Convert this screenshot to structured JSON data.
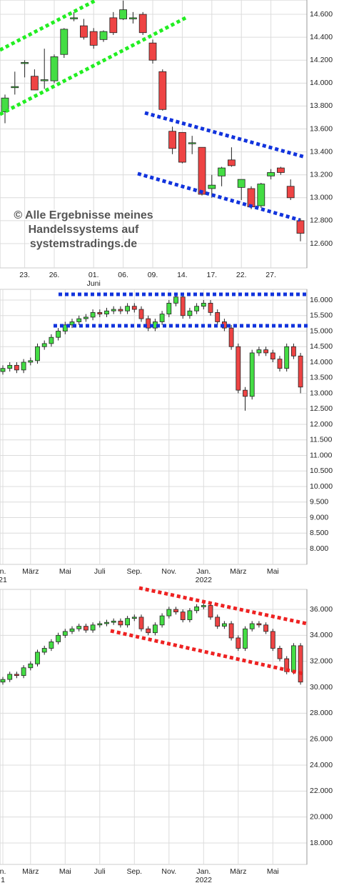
{
  "chart_data": [
    {
      "type": "candlestick",
      "watermark": [
        "© Alle Ergebnisse meines",
        "Handelssystems auf",
        "systemstradings.de"
      ],
      "categories": [
        null,
        null,
        "23.",
        null,
        null,
        "26.",
        null,
        null,
        null,
        "01.",
        null,
        null,
        "06.",
        null,
        null,
        "09.",
        null,
        null,
        "14.",
        null,
        null,
        "17.",
        null,
        null,
        "22.",
        null,
        null,
        "27.",
        null,
        null,
        null
      ],
      "sublabels": [
        null,
        null,
        null,
        null,
        null,
        null,
        null,
        null,
        null,
        "Juni",
        null,
        null,
        null,
        null,
        null,
        null,
        null,
        null,
        null,
        null,
        null,
        null,
        null,
        null,
        null,
        null,
        null,
        null,
        null,
        null,
        null
      ],
      "open": [
        13750,
        13960,
        14180,
        14060,
        14020,
        14020,
        14250,
        14570,
        14500,
        14450,
        14380,
        14570,
        14560,
        14560,
        14600,
        14350,
        14100,
        13580,
        13570,
        13480,
        13440,
        13080,
        13190,
        13330,
        13090,
        13080,
        12930,
        13190,
        13260,
        13100,
        12800
      ],
      "high": [
        13900,
        14100,
        14200,
        14120,
        14300,
        14250,
        14480,
        14620,
        14560,
        14480,
        14460,
        14620,
        14720,
        14620,
        14620,
        14380,
        14120,
        13620,
        13570,
        13540,
        13440,
        13200,
        13270,
        13440,
        13160,
        13100,
        13130,
        13250,
        13270,
        13160,
        12820
      ],
      "low": [
        13650,
        13900,
        14050,
        13950,
        13950,
        14000,
        14220,
        14540,
        14380,
        14300,
        14360,
        14420,
        14550,
        14520,
        14420,
        14170,
        13760,
        13380,
        13300,
        13380,
        13020,
        13000,
        13100,
        13270,
        12980,
        12900,
        12910,
        13160,
        13200,
        12980,
        12620
      ],
      "close": [
        13870,
        13970,
        14180,
        13940,
        14030,
        14230,
        14470,
        14570,
        14400,
        14330,
        14450,
        14440,
        14640,
        14570,
        14440,
        14200,
        13770,
        13430,
        13310,
        13480,
        13030,
        13110,
        13260,
        13280,
        13160,
        12920,
        13120,
        13220,
        13220,
        13000,
        12690
      ],
      "ylim": [
        12388,
        14725
      ],
      "yticks": [
        {
          "value": 12600,
          "label": "12.600"
        },
        {
          "value": 12800,
          "label": "12.800"
        },
        {
          "value": 13000,
          "label": "13.000"
        },
        {
          "value": 13200,
          "label": "13.200"
        },
        {
          "value": 13400,
          "label": "13.400"
        },
        {
          "value": 13600,
          "label": "13.600"
        },
        {
          "value": 13800,
          "label": "13.800"
        },
        {
          "value": 14000,
          "label": "14.000"
        },
        {
          "value": 14200,
          "label": "14.200"
        },
        {
          "value": 14400,
          "label": "14.400"
        },
        {
          "value": 14600,
          "label": "14.600"
        }
      ],
      "grid": true,
      "up_color": "#44dd44",
      "down_color": "#ee4444"
    },
    {
      "type": "candlestick",
      "categories": [
        "n.",
        null,
        null,
        null,
        "März",
        null,
        null,
        null,
        null,
        "Mai",
        null,
        null,
        null,
        null,
        "Juli",
        null,
        null,
        null,
        null,
        "Sep.",
        null,
        null,
        null,
        null,
        "Nov.",
        null,
        null,
        null,
        null,
        "Jan.",
        null,
        null,
        null,
        null,
        "März",
        null,
        null,
        null,
        null,
        "Mai",
        null,
        null,
        null,
        null
      ],
      "sublabels": [
        "21",
        null,
        null,
        null,
        null,
        null,
        null,
        null,
        null,
        null,
        null,
        null,
        null,
        null,
        null,
        null,
        null,
        null,
        null,
        null,
        null,
        null,
        null,
        null,
        null,
        null,
        null,
        null,
        null,
        "2022",
        null,
        null,
        null,
        null,
        null,
        null,
        null,
        null,
        null,
        null,
        null,
        null,
        null,
        null
      ],
      "open": [
        13700,
        13800,
        13900,
        13750,
        14000,
        14050,
        14500,
        14600,
        14800,
        15000,
        15200,
        15300,
        15400,
        15450,
        15600,
        15550,
        15650,
        15700,
        15650,
        15800,
        15700,
        15400,
        15100,
        15300,
        15550,
        15900,
        16100,
        15500,
        15650,
        15800,
        15900,
        15600,
        15300,
        15100,
        14500,
        13100,
        12900,
        14300,
        14400,
        14300,
        14100,
        13800,
        14500,
        14200
      ],
      "high": [
        13900,
        14000,
        14000,
        14100,
        14150,
        14600,
        14700,
        14900,
        15100,
        15300,
        15400,
        15500,
        15550,
        15700,
        15700,
        15750,
        15800,
        15800,
        15900,
        15900,
        15800,
        15500,
        15400,
        15650,
        16000,
        16200,
        16200,
        15750,
        15900,
        16000,
        16000,
        15700,
        15400,
        15200,
        14600,
        13200,
        14400,
        14500,
        14500,
        14400,
        14200,
        14600,
        14600,
        14300
      ],
      "low": [
        13600,
        13700,
        13650,
        13650,
        13900,
        13950,
        14400,
        14500,
        14700,
        14900,
        15100,
        15200,
        15300,
        15350,
        15450,
        15450,
        15550,
        15550,
        15550,
        15600,
        15300,
        15000,
        15000,
        15200,
        15450,
        15800,
        15400,
        15400,
        15550,
        15700,
        15500,
        15200,
        15000,
        14400,
        13000,
        12440,
        12800,
        14200,
        14200,
        14000,
        13700,
        13700,
        14100,
        13000
      ],
      "close": [
        13800,
        13900,
        13750,
        14000,
        14050,
        14500,
        14600,
        14800,
        15000,
        15200,
        15300,
        15400,
        15450,
        15600,
        15550,
        15650,
        15700,
        15650,
        15800,
        15700,
        15400,
        15100,
        15300,
        15550,
        15900,
        16100,
        15500,
        15650,
        15800,
        15900,
        15600,
        15300,
        15100,
        14500,
        13100,
        12900,
        14300,
        14400,
        14300,
        14100,
        13800,
        14500,
        14200,
        13200
      ],
      "ylim": [
        7494,
        16345
      ],
      "yticks": [
        {
          "value": 8000,
          "label": "8.000"
        },
        {
          "value": 8500,
          "label": "8.500"
        },
        {
          "value": 9000,
          "label": "9.000"
        },
        {
          "value": 9500,
          "label": "9.500"
        },
        {
          "value": 10000,
          "label": "10.000"
        },
        {
          "value": 10500,
          "label": "10.500"
        },
        {
          "value": 11000,
          "label": "11.000"
        },
        {
          "value": 11500,
          "label": "11.500"
        },
        {
          "value": 12000,
          "label": "12.000"
        },
        {
          "value": 12500,
          "label": "12.500"
        },
        {
          "value": 13000,
          "label": "13.000"
        },
        {
          "value": 13500,
          "label": "13.500"
        },
        {
          "value": 14000,
          "label": "14.000"
        },
        {
          "value": 14500,
          "label": "14.500"
        },
        {
          "value": 15000,
          "label": "15.000"
        },
        {
          "value": 15500,
          "label": "15.500"
        },
        {
          "value": 16000,
          "label": "16.000"
        }
      ],
      "grid": true,
      "up_color": "#44dd44",
      "down_color": "#ee4444"
    },
    {
      "type": "candlestick",
      "categories": [
        "n.",
        null,
        null,
        null,
        "März",
        null,
        null,
        null,
        null,
        "Mai",
        null,
        null,
        null,
        null,
        "Juli",
        null,
        null,
        null,
        null,
        "Sep.",
        null,
        null,
        null,
        null,
        "Nov.",
        null,
        null,
        null,
        null,
        "Jan.",
        null,
        null,
        null,
        null,
        "März",
        null,
        null,
        null,
        null,
        "Mai",
        null,
        null,
        null,
        null
      ],
      "sublabels": [
        "1",
        null,
        null,
        null,
        null,
        null,
        null,
        null,
        null,
        null,
        null,
        null,
        null,
        null,
        null,
        null,
        null,
        null,
        null,
        null,
        null,
        null,
        null,
        null,
        null,
        null,
        null,
        null,
        null,
        "2022",
        null,
        null,
        null,
        null,
        null,
        null,
        null,
        null,
        null,
        null,
        null,
        null,
        null,
        null
      ],
      "open": [
        30400,
        30600,
        31000,
        30900,
        31500,
        31800,
        32700,
        33000,
        33500,
        34000,
        34300,
        34500,
        34700,
        34400,
        34800,
        34900,
        35000,
        35100,
        34800,
        35300,
        35400,
        34500,
        34200,
        34800,
        35500,
        36000,
        35800,
        35200,
        35900,
        36200,
        36300,
        35400,
        34700,
        34900,
        33800,
        33000,
        34500,
        34900,
        34800,
        34300,
        33000,
        32200,
        31200,
        33200
      ],
      "high": [
        30800,
        31200,
        31200,
        31700,
        32000,
        32900,
        33200,
        33700,
        34200,
        34500,
        34700,
        34900,
        34900,
        35000,
        35100,
        35200,
        35300,
        35300,
        35500,
        35600,
        35600,
        34700,
        35000,
        35700,
        36200,
        36200,
        36000,
        36100,
        36400,
        36500,
        36500,
        35600,
        35100,
        35100,
        34000,
        34700,
        35100,
        35100,
        35000,
        34500,
        33200,
        32400,
        33400,
        33400
      ],
      "low": [
        30200,
        30400,
        30700,
        30700,
        31300,
        31600,
        32500,
        32800,
        33300,
        33800,
        34100,
        34300,
        34200,
        34200,
        34600,
        34700,
        34800,
        34600,
        34600,
        35100,
        34300,
        34000,
        34000,
        34600,
        35300,
        35600,
        35000,
        35000,
        35700,
        36000,
        35200,
        34500,
        34500,
        33600,
        32800,
        32800,
        34300,
        34600,
        34100,
        32800,
        32000,
        31000,
        31000,
        30200
      ],
      "close": [
        30600,
        31000,
        30900,
        31500,
        31800,
        32700,
        33000,
        33500,
        34000,
        34300,
        34500,
        34700,
        34400,
        34800,
        34900,
        35000,
        35100,
        34800,
        35300,
        35400,
        34500,
        34200,
        34800,
        35500,
        36000,
        35800,
        35200,
        35900,
        36200,
        36300,
        35400,
        34700,
        34900,
        33800,
        33000,
        34500,
        34900,
        34800,
        34300,
        33000,
        32200,
        31200,
        33200,
        30400
      ],
      "ylim": [
        16349,
        37541
      ],
      "yticks": [
        {
          "value": 18000,
          "label": "18.000"
        },
        {
          "value": 20000,
          "label": "20.000"
        },
        {
          "value": 22000,
          "label": "22.000"
        },
        {
          "value": 24000,
          "label": "24.000"
        },
        {
          "value": 26000,
          "label": "26.000"
        },
        {
          "value": 28000,
          "label": "28.000"
        },
        {
          "value": 30000,
          "label": "30.000"
        },
        {
          "value": 32000,
          "label": "32.000"
        },
        {
          "value": 34000,
          "label": "34.000"
        },
        {
          "value": 36000,
          "label": "36.000"
        }
      ],
      "grid": true,
      "up_color": "#44dd44",
      "down_color": "#ee4444"
    }
  ]
}
